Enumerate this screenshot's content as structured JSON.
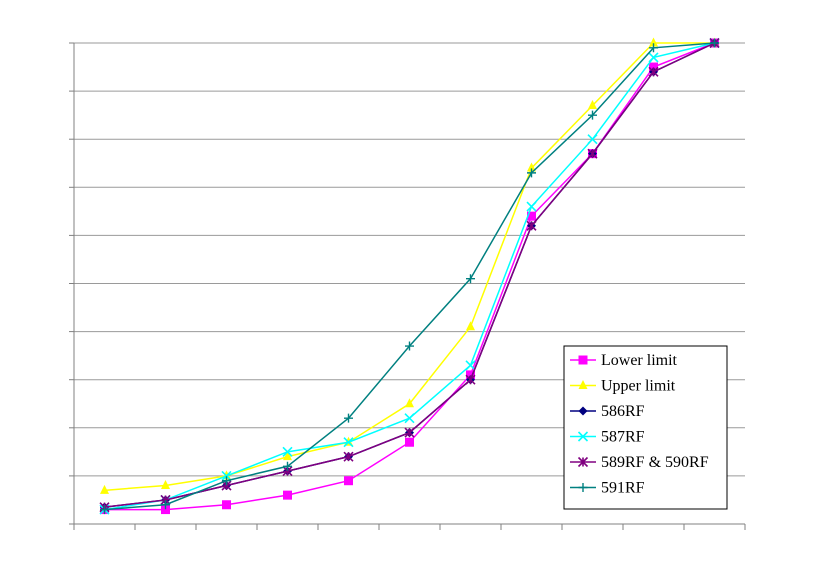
{
  "chart_data": {
    "type": "line",
    "x": [
      1,
      2,
      3,
      4,
      5,
      6,
      7,
      8,
      9,
      10,
      11
    ],
    "xlim": [
      0.5,
      11.5
    ],
    "ylim": [
      0,
      100
    ],
    "y_gridlines": [
      0,
      10,
      20,
      30,
      40,
      50,
      60,
      70,
      80,
      90,
      100
    ],
    "grid": true,
    "legend_position": "bottom-right",
    "series": [
      {
        "name": "Lower limit",
        "marker": "square",
        "color": "#ff00ff",
        "values": [
          3,
          3,
          4,
          6,
          9,
          17,
          31,
          64,
          77,
          95,
          100
        ]
      },
      {
        "name": "Upper limit",
        "marker": "triangle",
        "color": "#ffff00",
        "values": [
          7,
          8,
          10,
          14,
          17,
          25,
          41,
          74,
          87,
          100,
          100
        ]
      },
      {
        "name": "586RF",
        "marker": "diamond",
        "color": "#000080",
        "values": [
          3.5,
          5,
          8,
          11,
          14,
          19,
          30,
          62,
          77,
          94,
          100
        ]
      },
      {
        "name": "587RF",
        "marker": "x",
        "color": "#00ffff",
        "values": [
          3,
          5,
          10,
          15,
          17,
          22,
          33,
          66,
          80,
          97,
          100
        ]
      },
      {
        "name": "589RF & 590RF",
        "marker": "star",
        "color": "#800080",
        "values": [
          3.5,
          5,
          8,
          11,
          14,
          19,
          30,
          62,
          77,
          94,
          100
        ]
      },
      {
        "name": "591RF",
        "marker": "plus",
        "color": "#008080",
        "values": [
          3,
          4,
          9,
          12,
          22,
          37,
          51,
          73,
          85,
          99,
          100
        ]
      }
    ]
  }
}
